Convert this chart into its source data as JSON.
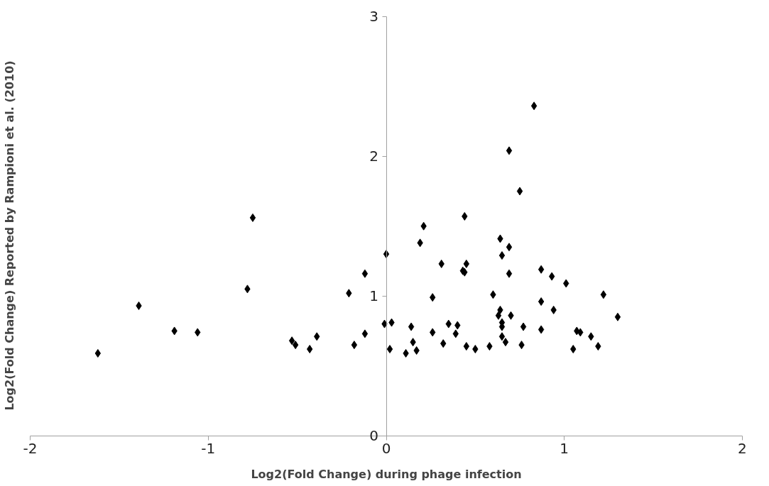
{
  "chart_data": {
    "type": "scatter",
    "xlabel": "Log2(Fold Change) during phage infection",
    "ylabel": "Log2(Fold Change) Reported by Rampioni et al. (2010)",
    "xlim": [
      -2,
      2
    ],
    "xticks": [
      -2,
      -1,
      0,
      1,
      2
    ],
    "ylim": [
      0,
      3
    ],
    "yticks": [
      0,
      1,
      2,
      3
    ],
    "grid": false,
    "marker": "diamond",
    "series": [
      {
        "color": "#000000",
        "x": [
          -1.62,
          -1.39,
          -1.19,
          -1.06,
          -0.78,
          -0.75,
          -0.53,
          -0.51,
          -0.43,
          -0.39,
          -0.21,
          -0.18,
          -0.12,
          -0.12,
          0.0,
          -0.01,
          0.03,
          0.02,
          0.11,
          0.14,
          0.15,
          0.17,
          0.19,
          0.21,
          0.26,
          0.26,
          0.31,
          0.32,
          0.35,
          0.39,
          0.4,
          0.44,
          0.43,
          0.44,
          0.45,
          0.45,
          0.5,
          0.58,
          0.6,
          0.63,
          0.64,
          0.64,
          0.65,
          0.65,
          0.65,
          0.65,
          0.67,
          0.69,
          0.69,
          0.69,
          0.7,
          0.75,
          0.76,
          0.77,
          0.83,
          0.87,
          0.87,
          0.87,
          0.93,
          0.94,
          1.01,
          1.05,
          1.07,
          1.09,
          1.15,
          1.19,
          1.22,
          1.3
        ],
        "values": [
          0.59,
          0.93,
          0.75,
          0.74,
          1.05,
          1.56,
          0.68,
          0.65,
          0.62,
          0.71,
          1.02,
          0.65,
          0.73,
          1.16,
          1.3,
          0.8,
          0.81,
          0.62,
          0.59,
          0.78,
          0.67,
          0.61,
          1.38,
          1.5,
          0.99,
          0.74,
          1.23,
          0.66,
          0.8,
          0.73,
          0.79,
          1.57,
          1.18,
          1.17,
          1.23,
          0.64,
          0.62,
          0.64,
          1.01,
          0.86,
          1.41,
          0.9,
          1.29,
          0.81,
          0.78,
          0.71,
          0.67,
          1.16,
          2.04,
          1.35,
          0.86,
          1.75,
          0.65,
          0.78,
          2.36,
          1.19,
          0.96,
          0.76,
          1.14,
          0.9,
          1.09,
          0.62,
          0.75,
          0.74,
          0.71,
          0.64,
          1.01,
          0.85
        ]
      }
    ]
  }
}
